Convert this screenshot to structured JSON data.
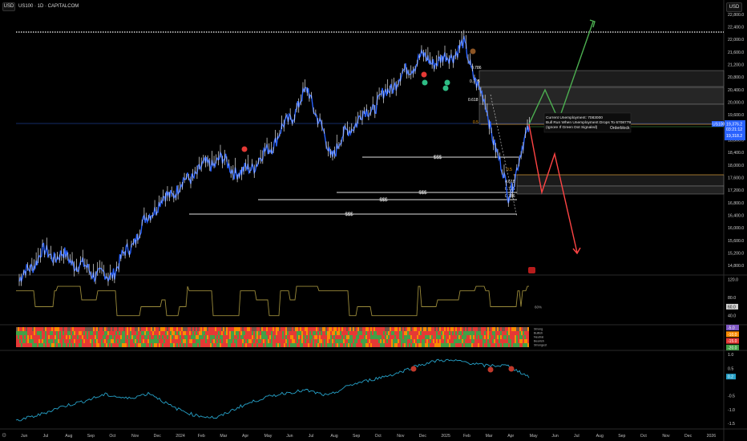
{
  "header": {
    "currency_left": "USD",
    "symbol_line": "US100 · 1D · CAPITALCOM",
    "currency_right": "USD"
  },
  "colors": {
    "background": "#000000",
    "price_line": "#2962ff",
    "bull": "#2ebd85",
    "bear": "#ff3b30",
    "indicator_line": "#26a2c9",
    "fib_orange": "#f59e0b",
    "arrow_green": "#4caf50",
    "arrow_red": "#ff4444"
  },
  "chart_data": [
    {
      "type": "line",
      "name": "price",
      "x": [
        "2023-06",
        "2023-07",
        "2023-08",
        "2023-09",
        "2023-10",
        "2023-11",
        "2023-12",
        "2024-01",
        "2024-02",
        "2024-03",
        "2024-04",
        "2024-05",
        "2024-06",
        "2024-07",
        "2024-08",
        "2024-09",
        "2024-10",
        "2024-11",
        "2024-12",
        "2025-01",
        "2025-02",
        "2025-03",
        "2025-04",
        "2025-05"
      ],
      "series": [
        {
          "values": [
            14300,
            15200,
            15100,
            14700,
            14400,
            15400,
            16600,
            17200,
            17800,
            18200,
            17700,
            18300,
            19300,
            20400,
            18300,
            19300,
            19900,
            20700,
            21400,
            21300,
            21800,
            19800,
            17000,
            19376.2
          ]
        }
      ],
      "y_ticks": [
        "22,800.0",
        "22,400.0",
        "22,000.0",
        "21,600.0",
        "21,200.0",
        "20,800.0",
        "20,400.0",
        "20,000.0",
        "19,600.0",
        "19,200.0",
        "18,800.0",
        "18,400.0",
        "18,000.0",
        "17,600.0",
        "17,200.0",
        "16,800.0",
        "16,400.0",
        "16,000.0",
        "15,600.0",
        "15,200.0",
        "14,800.0"
      ],
      "ylim": [
        14500,
        22950
      ],
      "x_ticks": [
        "Jun",
        "Jul",
        "Aug",
        "Sep",
        "Oct",
        "Nov",
        "Dec",
        "2024",
        "Feb",
        "Mar",
        "Apr",
        "May",
        "Jun",
        "Jul",
        "Aug",
        "Sep",
        "Oct",
        "Nov",
        "Dec",
        "2025",
        "Feb",
        "Mar",
        "Apr",
        "May",
        "Jun",
        "Jul",
        "Aug",
        "Sep",
        "Oct",
        "Nov",
        "Dec",
        "2026"
      ],
      "fib_labels": [
        "0.786",
        "0.705",
        "0.618",
        "0.5",
        "0.5",
        "0.618",
        "0.705",
        "0.786"
      ],
      "ssl_labels": [
        "$$$",
        "$$$",
        "$$$",
        "$$$"
      ],
      "annotation_lines": [
        "Current Unemployment: 7083000",
        "Bull Run When Unemployment Drops To 6708779",
        "(Ignore If Green Dot Signaled)"
      ],
      "orderblock_label": "Orderblock",
      "price_badges": [
        {
          "label": "US100",
          "value": "19,376.2"
        },
        {
          "value": "03:21:12"
        },
        {
          "value": "19,318.2"
        }
      ]
    },
    {
      "type": "line",
      "name": "oscillator",
      "y_ticks": [
        "120.0",
        "80.0",
        "40.0"
      ],
      "badge": "60.0",
      "label": "60%",
      "ylim": [
        20,
        130
      ]
    },
    {
      "type": "heatmap",
      "name": "strength",
      "row_labels": [
        "Strong",
        "Bullish",
        "Neutral",
        "Bearish",
        "Strongest"
      ],
      "badges": [
        "-5.0",
        "-10.0",
        "-15.0",
        "-20.0"
      ]
    },
    {
      "type": "line",
      "name": "momentum",
      "y_ticks": [
        "1.0",
        "0.5",
        "-0.5",
        "-1.0",
        "-1.5"
      ],
      "badge": "0.2",
      "ylim": [
        -1.7,
        1.15
      ]
    }
  ]
}
